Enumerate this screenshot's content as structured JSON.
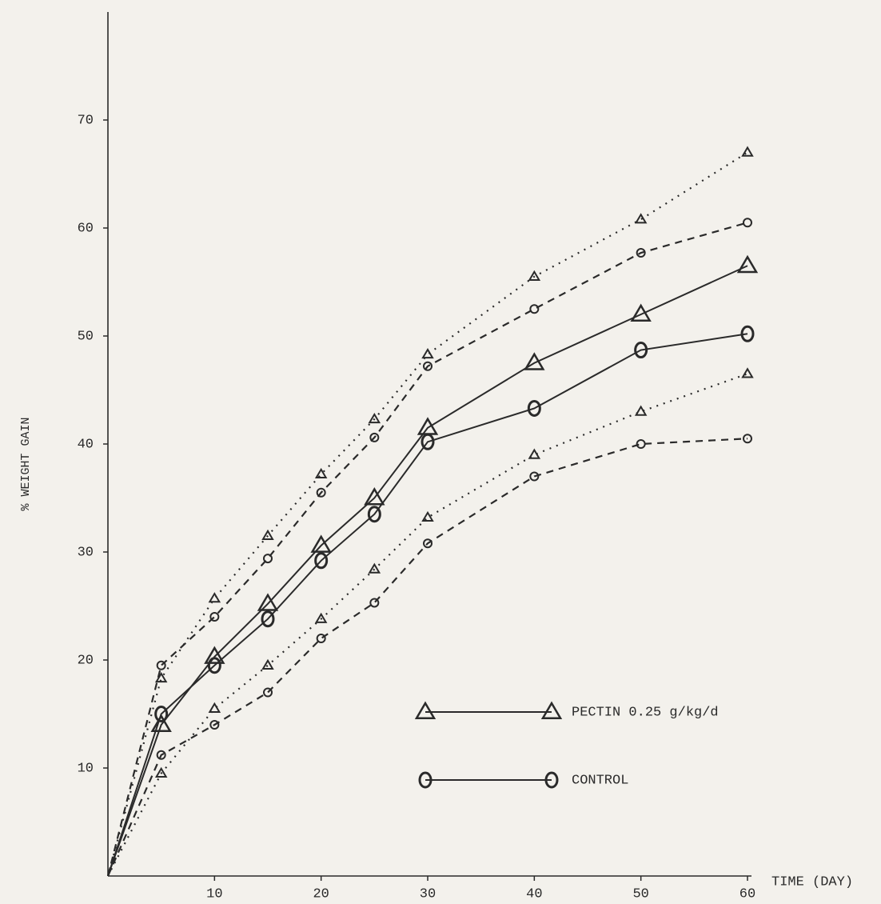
{
  "chart_data": {
    "type": "line",
    "x": [
      0,
      5,
      10,
      15,
      20,
      25,
      30,
      40,
      50,
      60
    ],
    "xlim": [
      0,
      60
    ],
    "xticks": [
      10,
      20,
      30,
      40,
      50,
      60
    ],
    "ylim": [
      0,
      80
    ],
    "yticks": [
      10,
      20,
      30,
      40,
      50,
      60,
      70
    ],
    "x_label": "TIME (DAY)",
    "y_label": "% WEIGHT GAIN",
    "grid": false,
    "series": [
      {
        "name": "PECTIN 0.25 g/kg/d",
        "color": "#2a2a2a",
        "marker": "triangle",
        "style": "solid",
        "values": [
          0,
          14,
          20.3,
          25.2,
          30.6,
          35,
          41.5,
          47.5,
          52,
          56.5
        ]
      },
      {
        "name": "CONTROL",
        "color": "#2a2a2a",
        "marker": "circle",
        "style": "solid",
        "values": [
          0,
          15,
          19.5,
          23.8,
          29.2,
          33.5,
          40.2,
          43.3,
          48.7,
          50.2
        ]
      },
      {
        "color": "#2a2a2a",
        "marker": "triangle",
        "style": "dotted",
        "values": [
          0,
          18.3,
          25.7,
          31.5,
          37.2,
          42.3,
          48.3,
          55.5,
          60.8,
          67
        ]
      },
      {
        "color": "#2a2a2a",
        "marker": "circle",
        "style": "dashed",
        "values": [
          0,
          19.5,
          24,
          29.4,
          35.5,
          40.6,
          47.2,
          52.5,
          57.7,
          60.5
        ]
      },
      {
        "color": "#2a2a2a",
        "marker": "triangle",
        "style": "dotted",
        "values": [
          0,
          9.5,
          15.5,
          19.5,
          23.8,
          28.4,
          33.2,
          39,
          43,
          46.5
        ]
      },
      {
        "color": "#2a2a2a",
        "marker": "circle",
        "style": "dashed",
        "values": [
          0,
          11.2,
          14,
          17,
          22,
          25.3,
          30.8,
          37,
          40,
          40.5
        ]
      }
    ]
  }
}
